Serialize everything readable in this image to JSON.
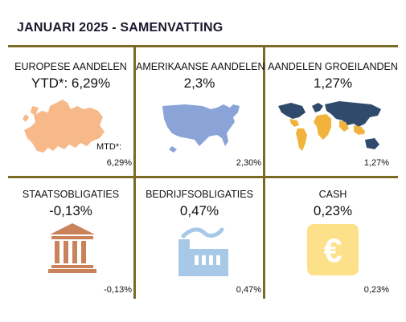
{
  "title": "JANUARI 2025 - SAMENVATTING",
  "cells": [
    {
      "label": "EUROPESE AANDELEN",
      "main": "YTD*: 6,29%",
      "mtd_label": "MTD*:",
      "note": "6,29%",
      "icon": "europe-map-icon"
    },
    {
      "label": "AMERIKAANSE AANDELEN",
      "main": "2,3%",
      "note": "2,30%",
      "icon": "usa-map-icon"
    },
    {
      "label": "AANDELEN GROEILANDEN",
      "main": "1,27%",
      "note": "1,27%",
      "icon": "world-map-icon"
    },
    {
      "label": "STAATSOBLIGATIES",
      "main": "-0,13%",
      "note": "-0,13%",
      "icon": "government-building-icon"
    },
    {
      "label": "BEDRIJFSOBLIGATIES",
      "main": "0,47%",
      "note": "0,47%",
      "icon": "factory-icon"
    },
    {
      "label": "CASH",
      "main": "0,23%",
      "note": "0,23%",
      "icon": "euro-icon"
    }
  ],
  "colors": {
    "divider": "#7a6a24",
    "europe": "#f7b98a",
    "usa": "#8aa4d8",
    "world_dark": "#2f4a6a",
    "world_light": "#f2b33d",
    "building": "#c9825a",
    "factory": "#a8c8e8",
    "cash": "#fde08a"
  }
}
